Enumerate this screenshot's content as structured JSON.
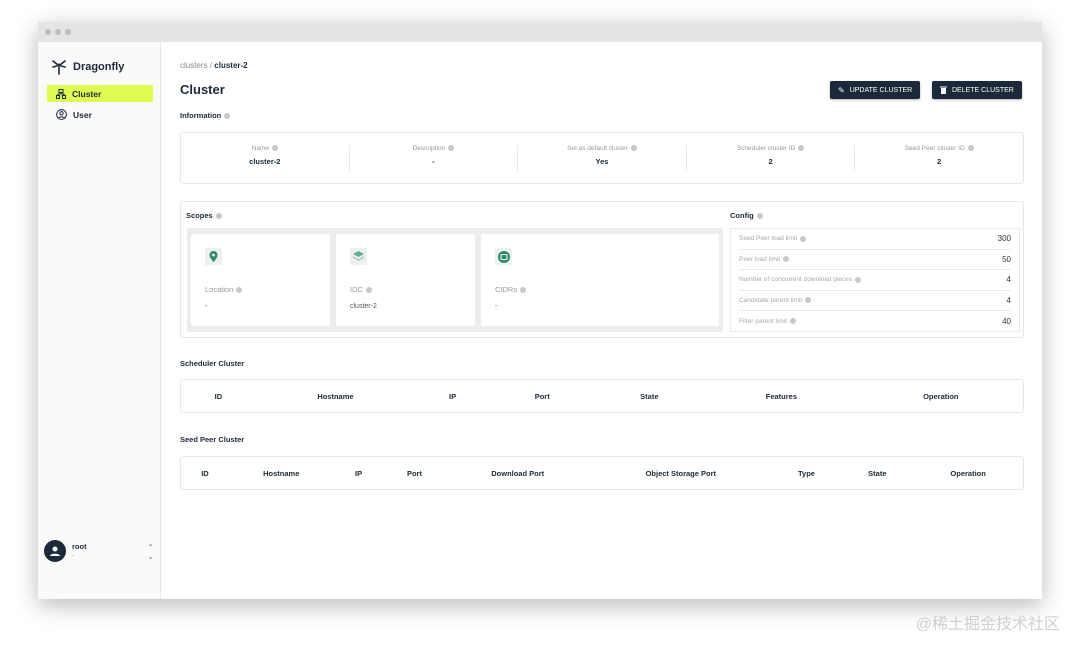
{
  "sidebar": {
    "brand": "Dragonfly",
    "items": [
      {
        "label": "Cluster",
        "icon": "sitemap-icon",
        "active": true
      },
      {
        "label": "User",
        "icon": "user-circle-icon"
      }
    ],
    "user": {
      "name": "root",
      "sub": "-"
    }
  },
  "breadcrumb": {
    "parent": "clusters",
    "sep": "/",
    "current": "cluster-2"
  },
  "page_title": "Cluster",
  "actions": {
    "update": "UPDATE CLUSTER",
    "delete": "DELETE CLUSTER"
  },
  "information": {
    "title": "Information",
    "fields": [
      {
        "label": "Name",
        "value": "cluster-2"
      },
      {
        "label": "Description",
        "value": "-"
      },
      {
        "label": "Set as default cluster",
        "value": "Yes"
      },
      {
        "label": "Scheduler cluster ID",
        "value": "2"
      },
      {
        "label": "Seed Peer cluster ID",
        "value": "2"
      }
    ]
  },
  "scopes": {
    "title": "Scopes",
    "items": [
      {
        "label": "Location",
        "value": "-",
        "icon": "location-pin-icon"
      },
      {
        "label": "IDC",
        "value": "cluster-2",
        "icon": "layers-icon"
      },
      {
        "label": "CIDRs",
        "value": "-",
        "icon": "ip-icon"
      }
    ]
  },
  "config": {
    "title": "Config",
    "rows": [
      {
        "label": "Seed Peer load limit",
        "value": "300"
      },
      {
        "label": "Peer load limit",
        "value": "50"
      },
      {
        "label": "Number of concurrent download pieces",
        "value": "4"
      },
      {
        "label": "Candidate parent limit",
        "value": "4"
      },
      {
        "label": "Filter parent limit",
        "value": "40"
      }
    ]
  },
  "scheduler_cluster": {
    "title": "Scheduler Cluster",
    "columns": [
      "ID",
      "Hostname",
      "IP",
      "Port",
      "State",
      "Features",
      "Operation"
    ]
  },
  "seed_peer_cluster": {
    "title": "Seed Peer Cluster",
    "columns": [
      "ID",
      "Hostname",
      "IP",
      "Port",
      "Download Port",
      "Object Storage Port",
      "Type",
      "State",
      "Operation"
    ]
  },
  "watermark": "@稀土掘金技术社区",
  "colors": {
    "accent": "#e0fc52",
    "primary": "#1c293a",
    "icon_green": "#2e8b6a"
  }
}
